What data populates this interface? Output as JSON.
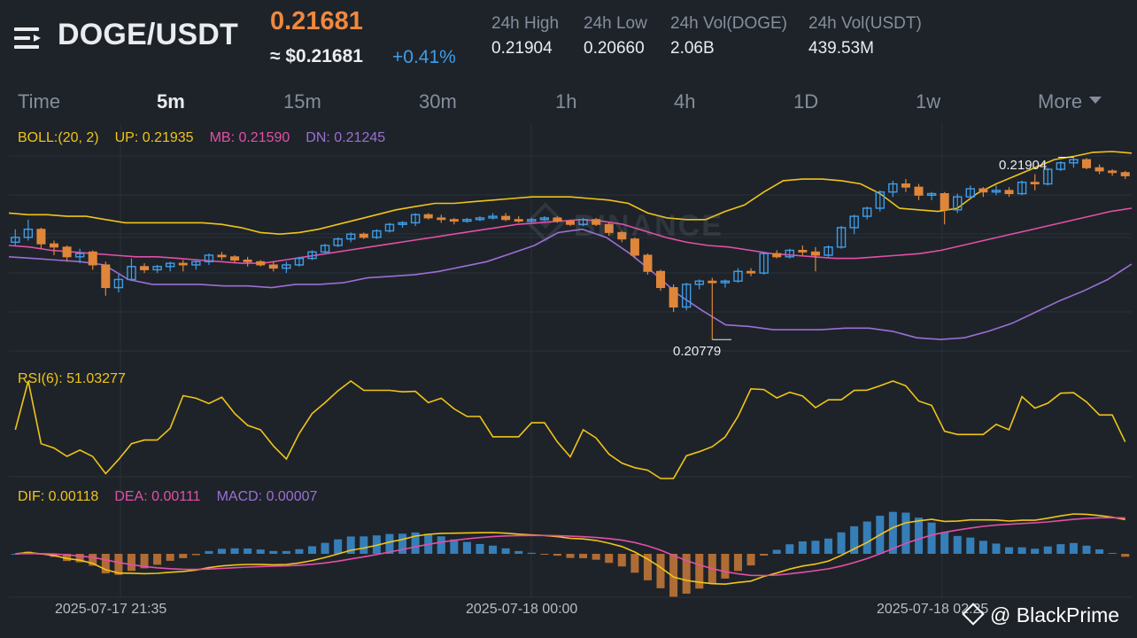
{
  "header": {
    "pair": "DOGE/USDT",
    "price": "0.21681",
    "usd_price": "≈ $0.21681",
    "change": "+0.41%",
    "stats": [
      {
        "label": "24h High",
        "value": "0.21904"
      },
      {
        "label": "24h Low",
        "value": "0.20660"
      },
      {
        "label": "24h Vol(DOGE)",
        "value": "2.06B"
      },
      {
        "label": "24h Vol(USDT)",
        "value": "439.53M"
      }
    ]
  },
  "tabs": [
    "Time",
    "5m",
    "15m",
    "30m",
    "1h",
    "4h",
    "1D",
    "1w",
    "More"
  ],
  "active_tab": "5m",
  "boll": {
    "label": "BOLL:(20, 2)",
    "up": "UP: 0.21935",
    "mb": "MB: 0.21590",
    "dn": "DN: 0.21245"
  },
  "rsi": {
    "label": "RSI(6): 51.03277"
  },
  "macd": {
    "dif": "DIF: 0.00118",
    "dea": "DEA: 0.00111",
    "macd": "MACD: 0.00007"
  },
  "annotations": {
    "high": "0.21904",
    "low": "0.20779"
  },
  "time_labels": [
    "2025-07-17 21:35",
    "2025-07-18 00:00",
    "2025-07-18 02:25"
  ],
  "watermark": "BINANCE",
  "brand": "@ BlackPrime",
  "colors": {
    "up": "#3f9de8",
    "down": "#e0863a",
    "boll_up": "#f0c419",
    "boll_mb": "#e34fa8",
    "boll_dn": "#9b6fd6",
    "background": "#1e2329"
  },
  "chart_data": {
    "type": "candlestick",
    "interval": "5m",
    "candles": [
      [
        0.2138,
        0.2146,
        0.2136,
        0.2141
      ],
      [
        0.2141,
        0.2152,
        0.2139,
        0.2146
      ],
      [
        0.2146,
        0.2147,
        0.2134,
        0.2137
      ],
      [
        0.2137,
        0.2139,
        0.213,
        0.2135
      ],
      [
        0.2135,
        0.2136,
        0.2126,
        0.2129
      ],
      [
        0.2129,
        0.2134,
        0.2125,
        0.2131
      ],
      [
        0.2132,
        0.2133,
        0.2121,
        0.2124
      ],
      [
        0.2124,
        0.2126,
        0.2105,
        0.211
      ],
      [
        0.211,
        0.2118,
        0.2107,
        0.2115
      ],
      [
        0.2115,
        0.2128,
        0.2114,
        0.2123
      ],
      [
        0.2123,
        0.2125,
        0.2119,
        0.2121
      ],
      [
        0.2121,
        0.2124,
        0.2119,
        0.2123
      ],
      [
        0.2123,
        0.2126,
        0.212,
        0.2125
      ],
      [
        0.2125,
        0.2127,
        0.212,
        0.2124
      ],
      [
        0.2124,
        0.2127,
        0.2121,
        0.2126
      ],
      [
        0.2126,
        0.2131,
        0.2124,
        0.213
      ],
      [
        0.213,
        0.2132,
        0.2127,
        0.2129
      ],
      [
        0.2129,
        0.213,
        0.2125,
        0.2127
      ],
      [
        0.2127,
        0.2129,
        0.2123,
        0.2126
      ],
      [
        0.2126,
        0.2127,
        0.2123,
        0.2124
      ],
      [
        0.2124,
        0.2126,
        0.212,
        0.2122
      ],
      [
        0.2122,
        0.2126,
        0.2119,
        0.2124
      ],
      [
        0.2124,
        0.2129,
        0.2123,
        0.2128
      ],
      [
        0.2128,
        0.2133,
        0.2127,
        0.2132
      ],
      [
        0.2132,
        0.2137,
        0.2131,
        0.2136
      ],
      [
        0.2136,
        0.2141,
        0.2135,
        0.214
      ],
      [
        0.214,
        0.2144,
        0.2138,
        0.2143
      ],
      [
        0.2143,
        0.2144,
        0.214,
        0.2141
      ],
      [
        0.2141,
        0.2146,
        0.214,
        0.2145
      ],
      [
        0.2145,
        0.215,
        0.2144,
        0.2149
      ],
      [
        0.2149,
        0.2151,
        0.2147,
        0.215
      ],
      [
        0.215,
        0.2156,
        0.2148,
        0.2155
      ],
      [
        0.2155,
        0.2156,
        0.2152,
        0.2153
      ],
      [
        0.2153,
        0.2155,
        0.215,
        0.2152
      ],
      [
        0.2152,
        0.2153,
        0.2149,
        0.2151
      ],
      [
        0.2151,
        0.2153,
        0.215,
        0.2152
      ],
      [
        0.2152,
        0.2154,
        0.2151,
        0.2153
      ],
      [
        0.2153,
        0.2156,
        0.2152,
        0.2154
      ],
      [
        0.2154,
        0.2156,
        0.2151,
        0.2152
      ],
      [
        0.2152,
        0.2154,
        0.215,
        0.2151
      ],
      [
        0.2151,
        0.2153,
        0.215,
        0.2152
      ],
      [
        0.2152,
        0.2154,
        0.2151,
        0.2153
      ],
      [
        0.2153,
        0.2154,
        0.215,
        0.2151
      ],
      [
        0.2151,
        0.2152,
        0.2148,
        0.2149
      ],
      [
        0.2149,
        0.2153,
        0.2148,
        0.2152
      ],
      [
        0.2152,
        0.2153,
        0.2148,
        0.2149
      ],
      [
        0.2149,
        0.215,
        0.2142,
        0.2144
      ],
      [
        0.2144,
        0.2145,
        0.2138,
        0.214
      ],
      [
        0.214,
        0.2141,
        0.2128,
        0.213
      ],
      [
        0.213,
        0.2131,
        0.2118,
        0.212
      ],
      [
        0.212,
        0.2121,
        0.2108,
        0.211
      ],
      [
        0.211,
        0.2112,
        0.2095,
        0.2098
      ],
      [
        0.2098,
        0.2113,
        0.2096,
        0.2112
      ],
      [
        0.2112,
        0.2115,
        0.2109,
        0.2114
      ],
      [
        0.2114,
        0.2116,
        0.20779,
        0.2113
      ],
      [
        0.2113,
        0.2115,
        0.211,
        0.2114
      ],
      [
        0.2114,
        0.2122,
        0.2113,
        0.212
      ],
      [
        0.212,
        0.2122,
        0.2117,
        0.2119
      ],
      [
        0.2119,
        0.2132,
        0.2118,
        0.2131
      ],
      [
        0.2131,
        0.2133,
        0.2128,
        0.2129
      ],
      [
        0.2129,
        0.2134,
        0.2128,
        0.2133
      ],
      [
        0.2133,
        0.2136,
        0.213,
        0.2132
      ],
      [
        0.2132,
        0.2135,
        0.212,
        0.213
      ],
      [
        0.213,
        0.2136,
        0.2129,
        0.2135
      ],
      [
        0.2135,
        0.2148,
        0.2134,
        0.2147
      ],
      [
        0.2147,
        0.2155,
        0.2143,
        0.2154
      ],
      [
        0.2154,
        0.216,
        0.2152,
        0.2159
      ],
      [
        0.2159,
        0.217,
        0.2157,
        0.2169
      ],
      [
        0.2169,
        0.2176,
        0.2166,
        0.2174
      ],
      [
        0.2174,
        0.2177,
        0.2169,
        0.2172
      ],
      [
        0.2172,
        0.2174,
        0.2164,
        0.2167
      ],
      [
        0.2167,
        0.2169,
        0.2164,
        0.2168
      ],
      [
        0.2168,
        0.2169,
        0.2149,
        0.2158
      ],
      [
        0.2158,
        0.2168,
        0.2156,
        0.2166
      ],
      [
        0.2166,
        0.2173,
        0.2165,
        0.2171
      ],
      [
        0.2171,
        0.2172,
        0.2166,
        0.2169
      ],
      [
        0.2169,
        0.2173,
        0.2167,
        0.217
      ],
      [
        0.217,
        0.2172,
        0.2166,
        0.2168
      ],
      [
        0.2168,
        0.2176,
        0.2167,
        0.2175
      ],
      [
        0.2175,
        0.218,
        0.217,
        0.2174
      ],
      [
        0.2174,
        0.2184,
        0.2173,
        0.2183
      ],
      [
        0.2183,
        0.2188,
        0.2182,
        0.2187
      ],
      [
        0.2187,
        0.21904,
        0.2184,
        0.2189
      ],
      [
        0.2189,
        0.219,
        0.2183,
        0.2184
      ],
      [
        0.2184,
        0.2186,
        0.218,
        0.2182
      ],
      [
        0.2182,
        0.2183,
        0.2179,
        0.2181
      ],
      [
        0.2181,
        0.2182,
        0.2177,
        0.2179
      ]
    ],
    "boll_up": [
      0.2156,
      0.2155,
      0.2155,
      0.2154,
      0.2154,
      0.2152,
      0.215,
      0.215,
      0.215,
      0.215,
      0.215,
      0.2149,
      0.2147,
      0.2144,
      0.2143,
      0.2144,
      0.2146,
      0.2149,
      0.2152,
      0.2155,
      0.2158,
      0.216,
      0.2162,
      0.2162,
      0.2163,
      0.2164,
      0.2165,
      0.2166,
      0.2166,
      0.2166,
      0.2165,
      0.2164,
      0.2162,
      0.2156,
      0.2153,
      0.2152,
      0.2152,
      0.2157,
      0.2161,
      0.2169,
      0.2176,
      0.2177,
      0.2177,
      0.2176,
      0.2174,
      0.2168,
      0.2159,
      0.2158,
      0.2157,
      0.2159,
      0.2168,
      0.2174,
      0.2179,
      0.2184,
      0.2189,
      0.2191,
      0.21935,
      0.2194,
      0.2193
    ],
    "boll_mb": [
      0.2136,
      0.2135,
      0.2133,
      0.2132,
      0.2131,
      0.213,
      0.2129,
      0.2129,
      0.2128,
      0.2127,
      0.2126,
      0.2125,
      0.2125,
      0.2127,
      0.2129,
      0.2131,
      0.2133,
      0.2135,
      0.2137,
      0.2139,
      0.2141,
      0.2143,
      0.2145,
      0.2147,
      0.2149,
      0.215,
      0.2151,
      0.2152,
      0.2151,
      0.2149,
      0.2145,
      0.2141,
      0.2138,
      0.2136,
      0.2135,
      0.2133,
      0.2131,
      0.213,
      0.2129,
      0.2128,
      0.2128,
      0.2129,
      0.213,
      0.2131,
      0.2133,
      0.2136,
      0.2139,
      0.2142,
      0.2145,
      0.2148,
      0.2151,
      0.2154,
      0.2157,
      0.2159
    ],
    "boll_dn": [
      0.2129,
      0.2128,
      0.2127,
      0.2126,
      0.2124,
      0.2115,
      0.2112,
      0.2112,
      0.2112,
      0.2111,
      0.2111,
      0.211,
      0.2112,
      0.2112,
      0.2113,
      0.2116,
      0.2117,
      0.2118,
      0.212,
      0.2123,
      0.2126,
      0.2131,
      0.2136,
      0.2144,
      0.2146,
      0.2141,
      0.2131,
      0.2119,
      0.2106,
      0.2096,
      0.2087,
      0.2086,
      0.2084,
      0.2084,
      0.2084,
      0.2085,
      0.2085,
      0.2083,
      0.2079,
      0.2078,
      0.2079,
      0.2083,
      0.2088,
      0.2095,
      0.2102,
      0.2108,
      0.2115,
      0.21245
    ]
  }
}
